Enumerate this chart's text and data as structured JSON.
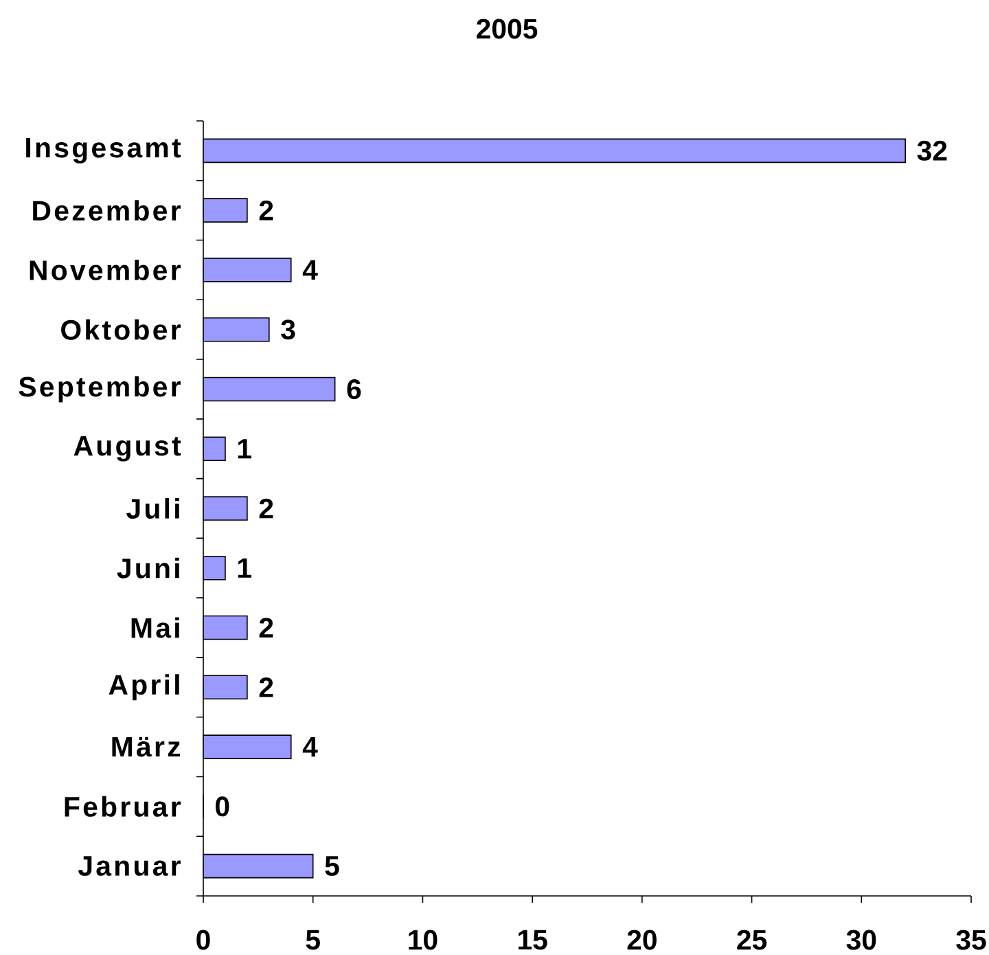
{
  "chart_data": {
    "type": "bar",
    "orientation": "horizontal",
    "title": "2005",
    "categories": [
      "Insgesamt",
      "Dezember",
      "November",
      "Oktober",
      "September",
      "August",
      "Juli",
      "Juni",
      "Mai",
      "April",
      "März",
      "Februar",
      "Januar"
    ],
    "values": [
      32,
      2,
      4,
      3,
      6,
      1,
      2,
      1,
      2,
      2,
      4,
      0,
      5
    ],
    "color": "#9999ff",
    "xlim": [
      0,
      35
    ],
    "xticks": [
      0,
      5,
      10,
      15,
      20,
      25,
      30,
      35
    ],
    "data_labels": true
  }
}
